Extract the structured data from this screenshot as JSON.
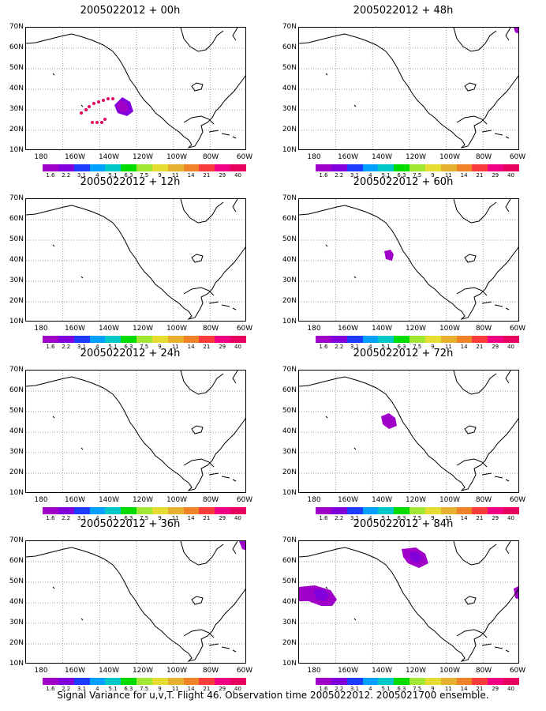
{
  "panels": [
    {
      "title": "2005022012 + 00h"
    },
    {
      "title": "2005022012 + 48h"
    },
    {
      "title": "2005022012 + 12h"
    },
    {
      "title": "2005022012 + 60h"
    },
    {
      "title": "2005022012 + 24h"
    },
    {
      "title": "2005022012 + 72h"
    },
    {
      "title": "2005022012 + 36h"
    },
    {
      "title": "2005022012 + 84h"
    }
  ],
  "axes": {
    "y_ticks": [
      "70N",
      "60N",
      "50N",
      "40N",
      "30N",
      "20N",
      "10N"
    ],
    "x_ticks": [
      "180",
      "160W",
      "140W",
      "120W",
      "100W",
      "80W",
      "60W"
    ]
  },
  "colorbar": {
    "labels": [
      "1.6",
      "2.2",
      "3.1",
      "4",
      "5.1",
      "6.3",
      "7.5",
      "9",
      "11",
      "14",
      "21",
      "29",
      "40"
    ],
    "colors": [
      "#a000c8",
      "#8200dc",
      "#1e3cff",
      "#00a0ff",
      "#00c8c8",
      "#00dc00",
      "#a0e632",
      "#e6dc32",
      "#e6af2d",
      "#f08228",
      "#fa3c3c",
      "#f00082",
      "#e60060"
    ]
  },
  "footer": "Signal Variance for u,v,T. Flight 46. Observation time 2005022012. 2005021700 ensemble."
}
